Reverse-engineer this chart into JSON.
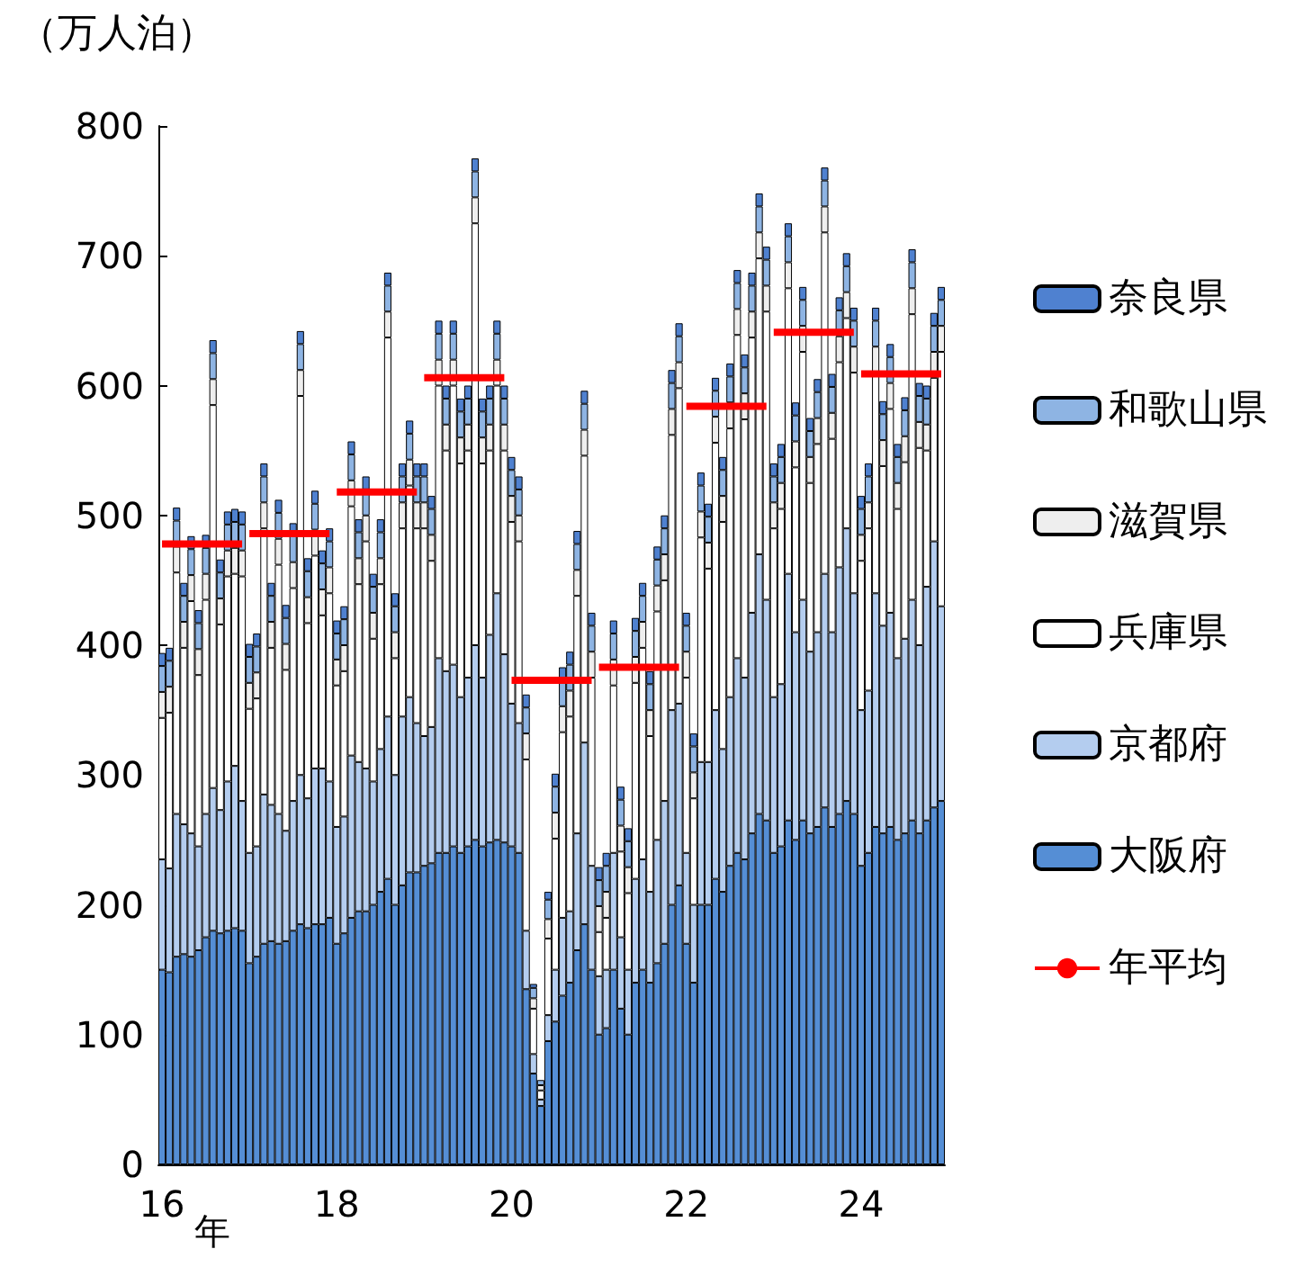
{
  "chart_data": {
    "type": "bar",
    "stacked": true,
    "ylabel": "（万人泊）",
    "xlabel": "年",
    "categories": [
      "16",
      null,
      null,
      null,
      null,
      null,
      null,
      null,
      null,
      null,
      null,
      null,
      null,
      null,
      null,
      null,
      null,
      null,
      null,
      null,
      null,
      null,
      null,
      null,
      "18",
      null,
      null,
      null,
      null,
      null,
      null,
      null,
      null,
      null,
      null,
      null,
      null,
      null,
      null,
      null,
      null,
      null,
      null,
      null,
      null,
      null,
      null,
      null,
      "20",
      null,
      null,
      null,
      null,
      null,
      null,
      null,
      null,
      null,
      null,
      null,
      null,
      null,
      null,
      null,
      null,
      null,
      null,
      null,
      null,
      null,
      null,
      null,
      "22",
      null,
      null,
      null,
      null,
      null,
      null,
      null,
      null,
      null,
      null,
      null,
      null,
      null,
      null,
      null,
      null,
      null,
      null,
      null,
      null,
      null,
      null,
      null,
      "24",
      null,
      null,
      null,
      null,
      null,
      null,
      null,
      null,
      null,
      null,
      null
    ],
    "ylim": [
      0,
      800
    ],
    "yticks": [
      0,
      100,
      200,
      300,
      400,
      500,
      600,
      700,
      800
    ],
    "grid": false,
    "legend": "right",
    "series": [
      {
        "name": "大阪府",
        "color": "#558ed5",
        "values": [
          150,
          148,
          160,
          162,
          160,
          165,
          175,
          180,
          178,
          180,
          182,
          180,
          155,
          160,
          170,
          172,
          170,
          172,
          180,
          185,
          182,
          185,
          185,
          190,
          170,
          178,
          190,
          195,
          195,
          200,
          210,
          220,
          200,
          215,
          225,
          225,
          230,
          232,
          240,
          240,
          245,
          240,
          245,
          250,
          245,
          248,
          250,
          248,
          245,
          240,
          135,
          70,
          45,
          95,
          110,
          130,
          140,
          165,
          185,
          150,
          100,
          105,
          150,
          120,
          100,
          140,
          150,
          140,
          155,
          170,
          200,
          215,
          170,
          140,
          200,
          200,
          220,
          210,
          230,
          240,
          235,
          255,
          270,
          265,
          240,
          245,
          265,
          250,
          265,
          255,
          260,
          275,
          260,
          270,
          280,
          270,
          230,
          240,
          260,
          255,
          260,
          250,
          255,
          265,
          255,
          265,
          275,
          280
        ]
      },
      {
        "name": "京都府",
        "color": "#b4cdef",
        "values": [
          85,
          80,
          110,
          100,
          95,
          80,
          95,
          110,
          95,
          115,
          125,
          100,
          85,
          85,
          115,
          105,
          100,
          85,
          100,
          115,
          100,
          120,
          120,
          105,
          90,
          90,
          125,
          115,
          110,
          95,
          110,
          125,
          100,
          130,
          135,
          115,
          100,
          105,
          150,
          140,
          140,
          120,
          130,
          150,
          130,
          160,
          190,
          145,
          110,
          100,
          45,
          15,
          5,
          20,
          40,
          60,
          55,
          90,
          140,
          80,
          45,
          45,
          90,
          55,
          50,
          80,
          85,
          70,
          95,
          110,
          150,
          140,
          70,
          60,
          110,
          110,
          130,
          110,
          130,
          150,
          140,
          170,
          200,
          170,
          120,
          125,
          190,
          160,
          170,
          140,
          150,
          180,
          150,
          190,
          210,
          170,
          120,
          125,
          180,
          160,
          165,
          140,
          150,
          170,
          145,
          180,
          205,
          150
        ]
      },
      {
        "name": "兵庫県",
        "color": "#ffffff",
        "values": [
          109,
          120,
          186,
          136,
          179,
          132,
          165,
          295,
          143,
          158,
          148,
          173,
          111,
          114,
          205,
          121,
          192,
          124,
          164,
          292,
          135,
          164,
          118,
          145,
          109,
          112,
          192,
          137,
          175,
          110,
          127,
          292,
          90,
          145,
          163,
          150,
          160,
          128,
          210,
          170,
          215,
          180,
          175,
          325,
          165,
          142,
          160,
          157,
          140,
          140,
          132,
          35,
          7,
          59,
          101,
          143,
          150,
          183,
          221,
          145,
          34,
          40,
          129,
          66,
          59,
          151,
          163,
          120,
          176,
          170,
          212,
          243,
          135,
          82,
          173,
          149,
          206,
          175,
          207,
          249,
          199,
          212,
          228,
          222,
          130,
          135,
          220,
          127,
          191,
          130,
          145,
          263,
          149,
          158,
          162,
          170,
          115,
          125,
          170,
          123,
          157,
          115,
          136,
          220,
          152,
          105,
          126,
          196
        ]
      },
      {
        "name": "滋賀県",
        "color": "#eeeeee",
        "values": [
          20,
          20,
          20,
          20,
          20,
          20,
          20,
          20,
          20,
          20,
          20,
          20,
          20,
          20,
          20,
          20,
          20,
          20,
          20,
          20,
          20,
          20,
          20,
          20,
          20,
          20,
          20,
          20,
          20,
          20,
          20,
          20,
          20,
          20,
          20,
          20,
          20,
          20,
          20,
          20,
          20,
          20,
          20,
          20,
          20,
          20,
          20,
          20,
          20,
          20,
          20,
          8,
          4,
          15,
          20,
          20,
          20,
          20,
          20,
          20,
          20,
          20,
          20,
          20,
          20,
          20,
          20,
          20,
          20,
          20,
          20,
          20,
          20,
          20,
          20,
          20,
          20,
          20,
          20,
          20,
          20,
          20,
          20,
          20,
          20,
          20,
          20,
          20,
          20,
          20,
          20,
          20,
          20,
          20,
          20,
          20,
          20,
          20,
          20,
          20,
          20,
          20,
          20,
          20,
          20,
          20,
          20,
          20
        ]
      },
      {
        "name": "和歌山県",
        "color": "#8eb4e3",
        "values": [
          20,
          20,
          20,
          20,
          20,
          20,
          20,
          20,
          20,
          20,
          20,
          20,
          20,
          20,
          20,
          20,
          20,
          20,
          20,
          20,
          20,
          20,
          20,
          20,
          20,
          20,
          20,
          20,
          20,
          20,
          20,
          20,
          20,
          20,
          20,
          20,
          20,
          20,
          20,
          20,
          20,
          20,
          20,
          20,
          20,
          20,
          20,
          20,
          20,
          20,
          20,
          8,
          4,
          15,
          20,
          20,
          20,
          20,
          20,
          20,
          20,
          20,
          20,
          20,
          20,
          20,
          20,
          20,
          20,
          20,
          20,
          20,
          20,
          20,
          20,
          20,
          20,
          20,
          20,
          20,
          20,
          20,
          20,
          20,
          20,
          20,
          20,
          20,
          20,
          20,
          20,
          20,
          20,
          20,
          20,
          20,
          20,
          20,
          20,
          20,
          20,
          20,
          20,
          20,
          20,
          20,
          20,
          20
        ]
      },
      {
        "name": "奈良県",
        "color": "#4f81d0",
        "values": [
          10,
          10,
          10,
          10,
          10,
          10,
          10,
          10,
          10,
          10,
          10,
          10,
          10,
          10,
          10,
          10,
          10,
          10,
          10,
          10,
          10,
          10,
          10,
          10,
          10,
          10,
          10,
          10,
          10,
          10,
          10,
          10,
          10,
          10,
          10,
          10,
          10,
          10,
          10,
          10,
          10,
          10,
          10,
          10,
          10,
          10,
          10,
          10,
          10,
          10,
          10,
          3,
          null,
          6,
          10,
          10,
          10,
          10,
          10,
          10,
          10,
          10,
          10,
          10,
          10,
          10,
          10,
          10,
          10,
          10,
          10,
          10,
          10,
          10,
          10,
          10,
          10,
          10,
          10,
          10,
          10,
          10,
          10,
          10,
          10,
          10,
          10,
          10,
          10,
          10,
          10,
          10,
          10,
          10,
          10,
          10,
          10,
          10,
          10,
          10,
          10,
          10,
          10,
          10,
          10,
          10,
          10,
          10
        ]
      },
      {
        "name": "年平均",
        "type": "line",
        "color": "#ff0000",
        "values": [
          478,
          478,
          478,
          478,
          478,
          478,
          478,
          478,
          478,
          478,
          478,
          478,
          486,
          486,
          486,
          486,
          486,
          486,
          486,
          486,
          486,
          486,
          486,
          486,
          518,
          518,
          518,
          518,
          518,
          518,
          518,
          518,
          518,
          518,
          518,
          518,
          606,
          606,
          606,
          606,
          606,
          606,
          606,
          606,
          606,
          606,
          606,
          606,
          373,
          373,
          373,
          373,
          373,
          373,
          373,
          373,
          373,
          373,
          373,
          373,
          383,
          383,
          383,
          383,
          383,
          383,
          383,
          383,
          383,
          383,
          383,
          383,
          584,
          584,
          584,
          584,
          584,
          584,
          584,
          584,
          584,
          584,
          584,
          584,
          641,
          641,
          641,
          641,
          641,
          641,
          641,
          641,
          641,
          641,
          641,
          641,
          609,
          609,
          609,
          609,
          609,
          609,
          609,
          609,
          609,
          609,
          609,
          609
        ]
      }
    ]
  }
}
